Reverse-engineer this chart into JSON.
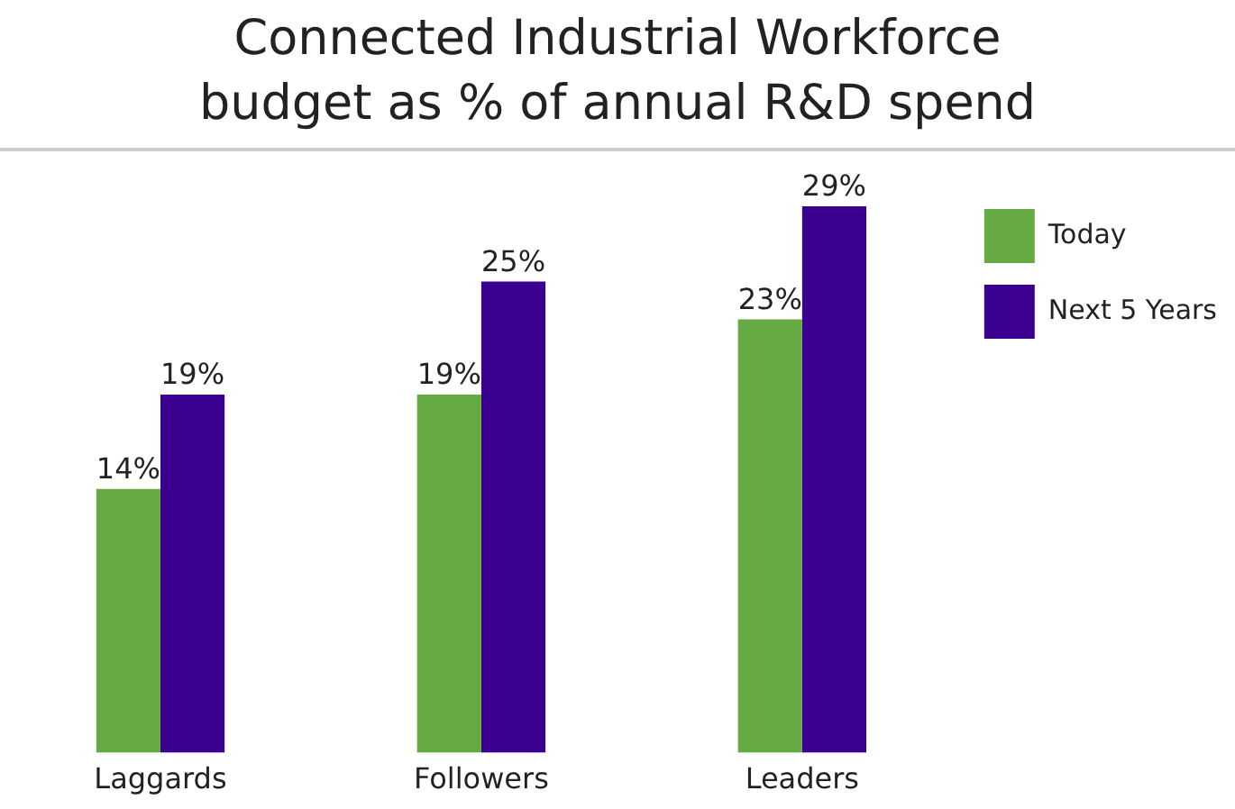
{
  "chart_data": {
    "type": "bar",
    "title": "Connected Industrial Workforce budget as % of annual R&D spend",
    "categories": [
      "Laggards",
      "Followers",
      "Leaders"
    ],
    "legend": "top right",
    "grid": false,
    "series": [
      {
        "name": "Today",
        "color": "#66aa44",
        "values": [
          14,
          19,
          23
        ],
        "value_labels": [
          "14%",
          "19%",
          "23%"
        ]
      },
      {
        "name": "Next 5 Years",
        "color": "#3b0090",
        "values": [
          19,
          25,
          29
        ],
        "value_labels": [
          "19%",
          "25%",
          "29%"
        ]
      }
    ]
  }
}
